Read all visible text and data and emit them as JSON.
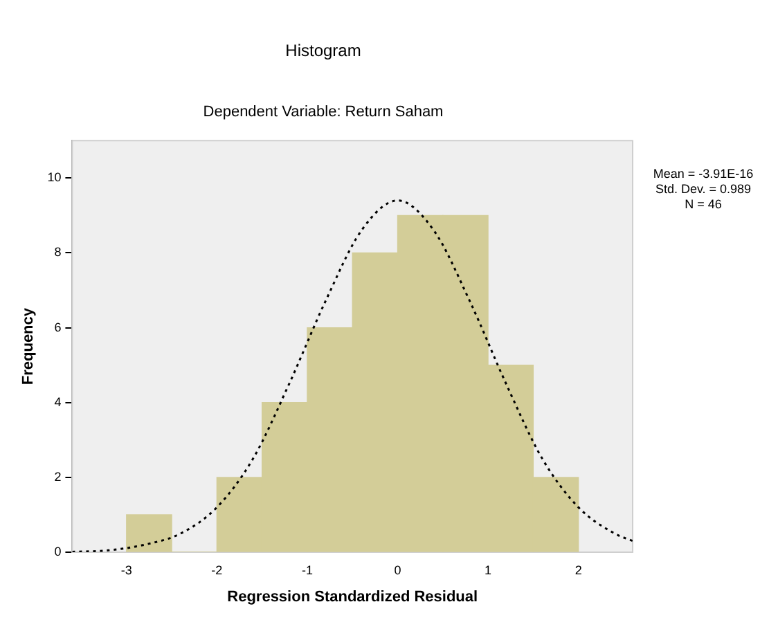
{
  "chart_data": {
    "type": "histogram",
    "title": "Histogram",
    "subtitle": "Dependent Variable: Return Saham",
    "xlabel": "Regression Standardized Residual",
    "ylabel": "Frequency",
    "bins": [
      -3,
      -2.5,
      -2,
      -1.5,
      -1,
      -0.5,
      0,
      0.5,
      1,
      1.5,
      2
    ],
    "series": [
      {
        "color": "#d3cd98",
        "values": [
          1,
          0,
          2,
          4,
          6,
          8,
          9,
          9,
          5,
          2
        ]
      },
      {
        "type": "line",
        "color": "#000000",
        "line_style": "dotted",
        "x": [
          -3.6,
          -3.2,
          -2.8,
          -2.4,
          -2.0,
          -1.6,
          -1.2,
          -0.8,
          -0.4,
          0,
          0.4,
          0.8,
          1.2,
          1.6,
          2.0,
          2.4,
          2.6
        ],
        "values": [
          0.01,
          0.05,
          0.2,
          0.5,
          1.2,
          2.5,
          4.5,
          6.7,
          8.6,
          9.4,
          8.6,
          6.7,
          4.5,
          2.5,
          1.2,
          0.5,
          0.3
        ]
      }
    ],
    "xlim": [
      -3.6,
      2.6
    ],
    "xticks": [
      -3,
      -2,
      -1,
      0,
      1,
      2
    ],
    "ylim": [
      0,
      11
    ],
    "yticks": [
      0,
      2,
      4,
      6,
      8,
      10
    ],
    "grid": false,
    "legend": false,
    "annotations": [
      "Mean = -3.91E-16",
      "Std. Dev. = 0.989",
      "N = 46"
    ]
  }
}
